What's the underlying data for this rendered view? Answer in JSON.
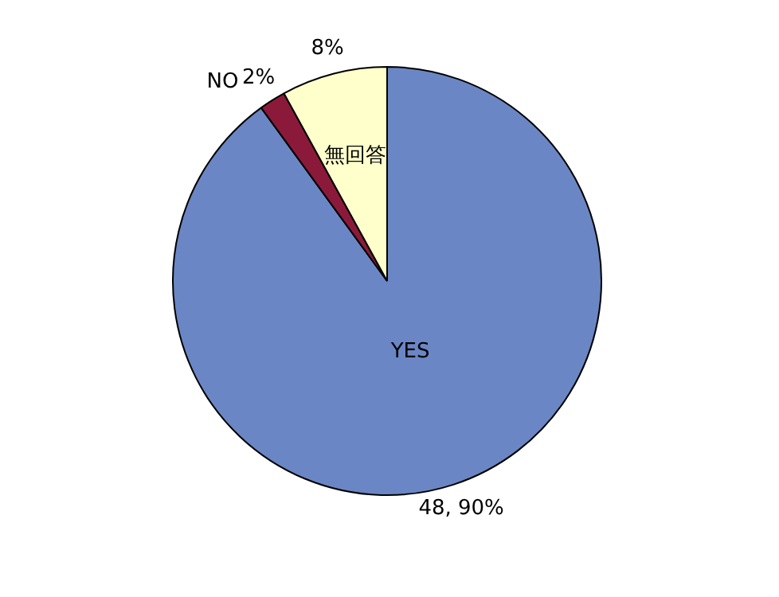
{
  "chart_data": {
    "type": "pie",
    "categories": [
      "YES",
      "NO",
      "無回答"
    ],
    "values": [
      90,
      2,
      8
    ],
    "value_labels": [
      "48, 90%",
      "2%",
      "8%"
    ],
    "colors": [
      "#6b86c4",
      "#8b1a3a",
      "#ffffcc"
    ],
    "legend": false
  }
}
